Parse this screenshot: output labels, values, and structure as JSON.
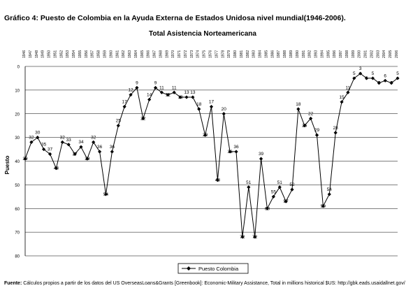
{
  "caption": "Gráfico 4: Puesto de Colombia en la Ayuda Externa de Estados Unidosa nivel mundial(1946-2006).",
  "source": {
    "label": "Fuente:",
    "text": "Cálculos propios a partir de los datos del US OverseasLoans&Grants [Greenbook]: Economic-Military Assistance, Total in millions historical $US: http://gbk.eads.usaidallnet.gov/"
  },
  "chart_data": {
    "type": "line",
    "title": "Total Asistencia Norteamericana",
    "ylabel": "Puesto",
    "xlabel": "",
    "ylim": [
      0,
      80
    ],
    "y_reversed": true,
    "y_ticks": [
      0,
      10,
      20,
      30,
      40,
      50,
      60,
      70,
      80
    ],
    "grid": true,
    "legend_position": "bottom-center",
    "colors": {
      "line": "#000000",
      "grid": "#000000"
    },
    "categories": [
      "1946",
      "1947",
      "1948",
      "1949",
      "1950",
      "1951",
      "1952",
      "1953",
      "1954",
      "1955",
      "1956",
      "1957",
      "1958",
      "1959",
      "1960",
      "1961",
      "1962",
      "1963",
      "1964",
      "1965",
      "1966",
      "1967",
      "1968",
      "1969",
      "1970",
      "1971",
      "1972",
      "1973",
      "1974",
      "1975",
      "1976",
      "1977",
      "1978",
      "1979",
      "1980",
      "1981",
      "1982",
      "1983",
      "1984",
      "1985",
      "1986",
      "1987",
      "1988",
      "1989",
      "1990",
      "1991",
      "1992",
      "1993",
      "1994",
      "1995",
      "1996",
      "1997",
      "1998",
      "1999",
      "2000",
      "2001",
      "2002",
      "2003",
      "2004",
      "2005",
      "2006"
    ],
    "series": [
      {
        "name": "Puesto Colombia",
        "values": [
          39,
          32,
          30,
          35,
          37,
          43,
          32,
          33,
          37,
          34,
          39,
          32,
          36,
          54,
          36,
          25,
          17,
          12,
          9,
          22,
          14,
          9,
          11,
          12,
          11,
          13,
          13,
          13,
          18,
          29,
          17,
          48,
          20,
          36,
          36,
          72,
          51,
          72,
          39,
          60,
          55,
          51,
          57,
          52,
          18,
          25,
          22,
          29,
          59,
          54,
          28,
          15,
          11,
          5,
          3,
          5,
          5,
          7,
          6,
          7,
          5
        ]
      }
    ]
  }
}
